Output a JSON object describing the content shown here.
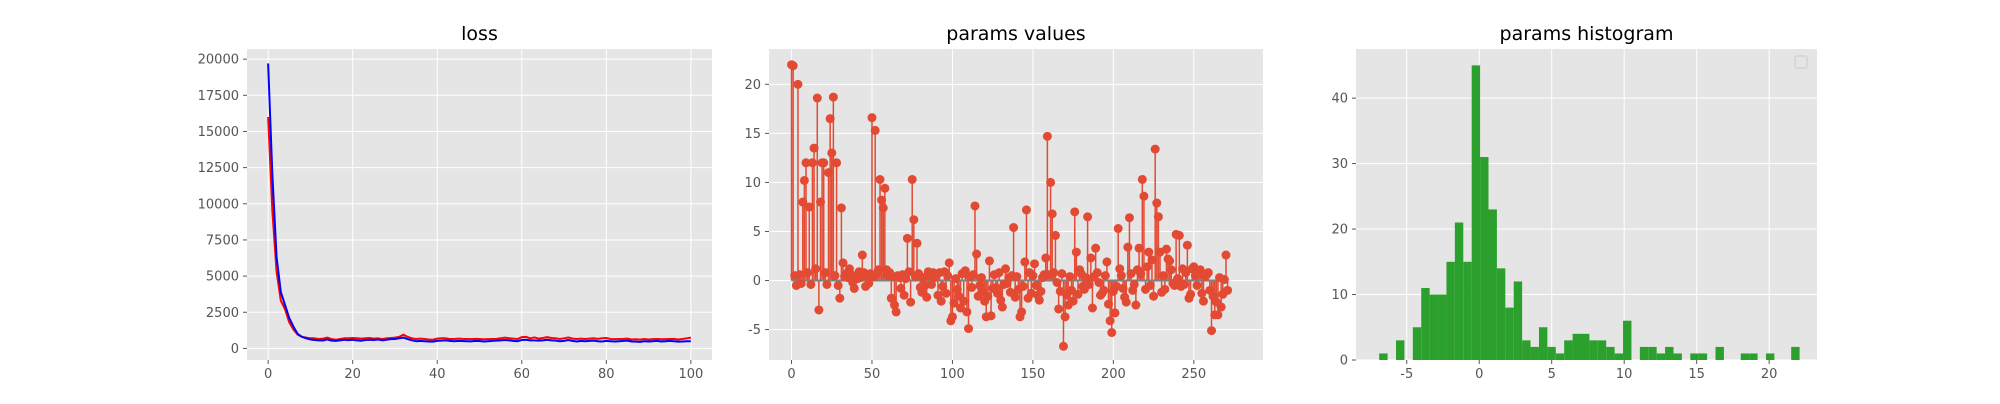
{
  "colors": {
    "plot_bg": "#e5e5e5",
    "grid": "#ffffff",
    "tick_text": "#555555",
    "title_text": "#000000",
    "loss_red": "#ff0000",
    "loss_blue": "#0000ff",
    "stem": "#e24a33",
    "baseline": "#808080",
    "hist": "#2ca02c"
  },
  "chart_data": [
    {
      "type": "line",
      "title": "loss",
      "xlabel": "",
      "ylabel": "",
      "xlim": [
        -5,
        105
      ],
      "ylim": [
        -800,
        20700
      ],
      "xticks": [
        0,
        20,
        40,
        60,
        80,
        100
      ],
      "yticks": [
        0,
        2500,
        5000,
        7500,
        10000,
        12500,
        15000,
        17500,
        20000
      ],
      "grid": true,
      "series": [
        {
          "color": "#ff0000",
          "x": [
            0,
            1,
            2,
            3,
            4,
            5,
            6,
            7,
            8,
            9,
            10,
            11,
            12,
            13,
            14,
            15,
            16,
            17,
            18,
            19,
            20,
            21,
            22,
            23,
            24,
            25,
            26,
            27,
            28,
            29,
            30,
            31,
            32,
            33,
            34,
            35,
            36,
            37,
            38,
            39,
            40,
            41,
            42,
            43,
            44,
            45,
            46,
            47,
            48,
            49,
            50,
            51,
            52,
            53,
            54,
            55,
            56,
            57,
            58,
            59,
            60,
            61,
            62,
            63,
            64,
            65,
            66,
            67,
            68,
            69,
            70,
            71,
            72,
            73,
            74,
            75,
            76,
            77,
            78,
            79,
            80,
            81,
            82,
            83,
            84,
            85,
            86,
            87,
            88,
            89,
            90,
            91,
            92,
            93,
            94,
            95,
            96,
            97,
            98,
            99,
            100
          ],
          "y": [
            16000,
            9500,
            5300,
            3300,
            2700,
            1800,
            1300,
            950,
            800,
            750,
            700,
            700,
            650,
            680,
            750,
            650,
            600,
            650,
            700,
            700,
            720,
            700,
            680,
            700,
            720,
            680,
            700,
            650,
            700,
            720,
            750,
            800,
            950,
            800,
            700,
            650,
            680,
            650,
            620,
            600,
            680,
            700,
            700,
            650,
            650,
            680,
            660,
            650,
            640,
            660,
            650,
            630,
            640,
            650,
            660,
            700,
            750,
            700,
            680,
            650,
            780,
            800,
            700,
            760,
            680,
            720,
            780,
            720,
            700,
            650,
            700,
            760,
            680,
            650,
            680,
            650,
            680,
            700,
            660,
            700,
            720,
            650,
            640,
            650,
            660,
            680,
            620,
            630,
            610,
            650,
            620,
            640,
            650,
            630,
            640,
            650,
            660,
            620,
            650,
            700,
            750
          ]
        },
        {
          "color": "#0000ff",
          "x": [
            0,
            1,
            2,
            3,
            4,
            5,
            6,
            7,
            8,
            9,
            10,
            11,
            12,
            13,
            14,
            15,
            16,
            17,
            18,
            19,
            20,
            21,
            22,
            23,
            24,
            25,
            26,
            27,
            28,
            29,
            30,
            31,
            32,
            33,
            34,
            35,
            36,
            37,
            38,
            39,
            40,
            41,
            42,
            43,
            44,
            45,
            46,
            47,
            48,
            49,
            50,
            51,
            52,
            53,
            54,
            55,
            56,
            57,
            58,
            59,
            60,
            61,
            62,
            63,
            64,
            65,
            66,
            67,
            68,
            69,
            70,
            71,
            72,
            73,
            74,
            75,
            76,
            77,
            78,
            79,
            80,
            81,
            82,
            83,
            84,
            85,
            86,
            87,
            88,
            89,
            90,
            91,
            92,
            93,
            94,
            95,
            96,
            97,
            98,
            99,
            100
          ],
          "y": [
            19700,
            12000,
            6300,
            3900,
            3000,
            2100,
            1500,
            1000,
            800,
            700,
            620,
            580,
            560,
            550,
            620,
            540,
            520,
            560,
            600,
            570,
            600,
            560,
            530,
            580,
            600,
            580,
            620,
            560,
            600,
            640,
            650,
            700,
            750,
            650,
            560,
            500,
            520,
            500,
            480,
            470,
            520,
            540,
            560,
            520,
            500,
            520,
            510,
            500,
            490,
            520,
            510,
            480,
            500,
            520,
            540,
            560,
            580,
            560,
            520,
            500,
            580,
            600,
            560,
            560,
            540,
            560,
            600,
            560,
            540,
            500,
            520,
            580,
            520,
            480,
            520,
            500,
            520,
            540,
            500,
            480,
            520,
            500,
            480,
            500,
            520,
            540,
            480,
            470,
            450,
            500,
            480,
            500,
            520,
            480,
            500,
            520,
            500,
            470,
            480,
            500,
            500
          ]
        }
      ]
    },
    {
      "type": "stem",
      "title": "params values",
      "xlabel": "",
      "ylabel": "",
      "xlim": [
        -14,
        293
      ],
      "ylim": [
        -8.1,
        23.6
      ],
      "xticks": [
        0,
        50,
        100,
        150,
        200,
        250
      ],
      "yticks": [
        -5,
        0,
        5,
        10,
        15,
        20
      ],
      "grid": true,
      "baseline": 0,
      "values": [
        22,
        21.9,
        0.5,
        -0.5,
        20,
        0.6,
        -0.3,
        8,
        10.2,
        12,
        0.8,
        7.5,
        -0.4,
        12,
        13.5,
        1.2,
        18.6,
        -3,
        8,
        12,
        12,
        0.8,
        -0.4,
        11,
        16.5,
        13,
        18.7,
        0.5,
        12,
        -0.5,
        -1.8,
        7.4,
        1.8,
        0.4,
        0.7,
        0.3,
        1.2,
        0.6,
        -0.2,
        -0.8,
        0.5,
        0.2,
        0.9,
        0.3,
        2.6,
        0.8,
        -0.6,
        0.4,
        -0.3,
        0.7,
        16.6,
        0.4,
        15.3,
        0.7,
        1.1,
        10.3,
        8.2,
        7.4,
        9.4,
        1.1,
        0.5,
        0.8,
        -1.8,
        0.4,
        -2.5,
        -3.2,
        0.5,
        0.3,
        -0.8,
        0.6,
        -1.5,
        0.2,
        4.3,
        0.9,
        -2.2,
        10.3,
        6.2,
        0.4,
        3.8,
        0.7,
        -0.7,
        -1.2,
        0.3,
        -0.5,
        -1.7,
        0.9,
        0.5,
        -0.4,
        0.8,
        0.3,
        0.6,
        -1.5,
        0.8,
        -2.1,
        -0.6,
        0.9,
        -1.3,
        0.5,
        1.8,
        -4.1,
        -3.7,
        -2.3,
        0.2,
        -0.9,
        -1.6,
        -2.8,
        0.7,
        -2.1,
        1,
        -3.2,
        -4.9,
        0.4,
        -0.7,
        0.6,
        7.6,
        2.7,
        -1.6,
        -0.5,
        0.3,
        -1.2,
        -2.1,
        -3.7,
        -1.6,
        2,
        -3.6,
        -0.8,
        0.6,
        -0.7,
        -1.3,
        0.8,
        -2,
        -2.7,
        -0.4,
        1.2,
        -0.3,
        0.3,
        -1.2,
        0.5,
        5.4,
        -1.7,
        0.4,
        -0.9,
        -3.7,
        -3.2,
        -0.6,
        1.9,
        7.2,
        -1.8,
        0.8,
        -1.3,
        0.5,
        1.7,
        -0.5,
        -1.5,
        -2,
        -1.1,
        0.3,
        0.6,
        2.3,
        14.7,
        0.6,
        10,
        6.8,
        0.8,
        4.6,
        -0.2,
        -2.9,
        -1.1,
        0.7,
        -6.7,
        -3.7,
        -1.5,
        -2.5,
        0.4,
        -1,
        -2.1,
        7,
        2.9,
        -1.4,
        1.1,
        0.7,
        -0.6,
        -0.9,
        0.3,
        6.5,
        -0.4,
        2.3,
        -2.8,
        0.4,
        3.3,
        0.8,
        -0.2,
        -1.5,
        -1.3,
        -1,
        0.5,
        1.9,
        -2.4,
        -4.1,
        -5.3,
        -1.1,
        -3.3,
        -0.6,
        5.3,
        1.2,
        0.5,
        -0.8,
        -1.7,
        -2.2,
        3.4,
        6.4,
        0.7,
        -1,
        -0.4,
        -2.5,
        1.1,
        3.3,
        0.7,
        10.3,
        8.6,
        -0.9,
        1.4,
        2.9,
        -0.5,
        2.1,
        -1.6,
        13.4,
        7.9,
        6.5,
        2.9,
        -1.2,
        0.5,
        -0.9,
        3.2,
        2.2,
        2,
        1.1,
        -0.3,
        -0.5,
        4.7,
        0.2,
        4.6,
        -0.6,
        1.2,
        -0.4,
        0.8,
        3.6,
        -1.8,
        -1.4,
        1.2,
        1.4,
        0.5,
        -0.5,
        0.9,
        1.1,
        -1.3,
        -2.1,
        0.4,
        0.6,
        0.8,
        -1,
        -5.1,
        -1.6,
        -3.5,
        -2.2,
        -3.5,
        0.3,
        -2.7,
        -1.4,
        0.1,
        2.6,
        -1
      ]
    },
    {
      "type": "histogram",
      "title": "params histogram",
      "xlabel": "",
      "ylabel": "",
      "xlim": [
        -8.5,
        23.3
      ],
      "ylim": [
        0,
        47.5
      ],
      "xticks": [
        -5,
        0,
        5,
        10,
        15,
        20
      ],
      "yticks": [
        0,
        10,
        20,
        30,
        40
      ],
      "grid": true,
      "legend": "top-right",
      "bin_start": -6.9,
      "bin_width": 0.58,
      "counts": [
        1,
        0,
        3,
        0,
        5,
        11,
        10,
        10,
        15,
        21,
        15,
        45,
        31,
        23,
        14,
        8,
        12,
        3,
        2,
        5,
        2,
        1,
        3,
        4,
        4,
        3,
        3,
        2,
        1,
        6,
        0,
        2,
        2,
        1,
        2,
        1,
        0,
        1,
        1,
        0,
        2,
        0,
        0,
        1,
        1,
        0,
        1,
        0,
        0,
        2
      ]
    }
  ]
}
